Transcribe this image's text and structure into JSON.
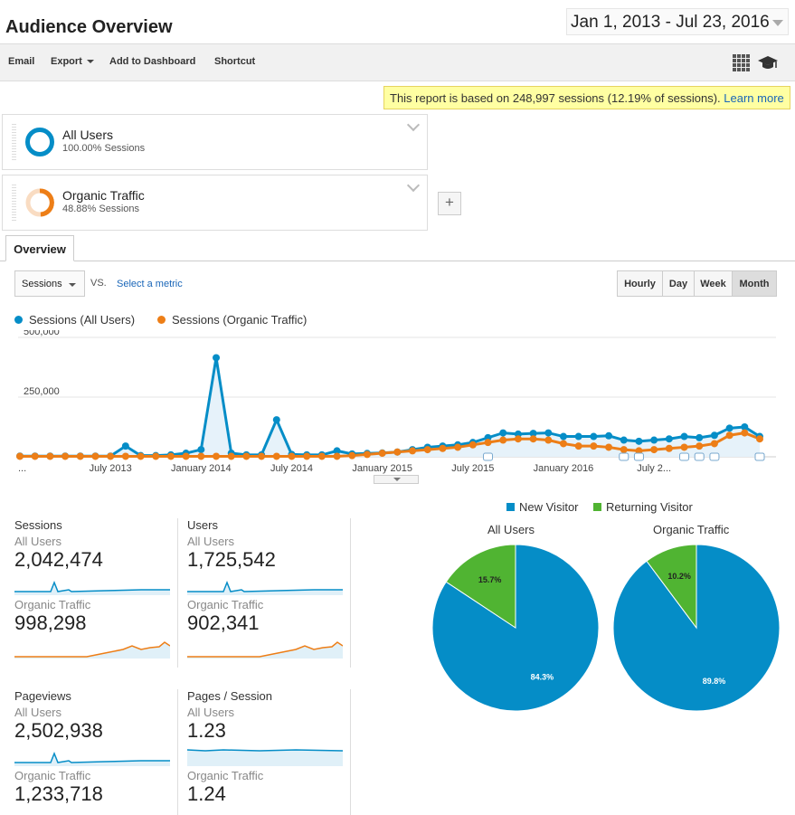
{
  "header": {
    "title": "Audience Overview",
    "date_range": "Jan 1, 2013 - Jul 23, 2016"
  },
  "toolbar": {
    "email": "Email",
    "export": "Export",
    "add_to_dashboard": "Add to Dashboard",
    "shortcut": "Shortcut",
    "icons": [
      "grid-icon",
      "graduation-cap-icon"
    ]
  },
  "notice": {
    "text": "This report is based on 248,997 sessions (12.19% of sessions).",
    "link": "Learn more"
  },
  "segments": [
    {
      "name": "All Users",
      "sub": "100.00% Sessions",
      "color": "#058dc7",
      "fraction": 1.0
    },
    {
      "name": "Organic Traffic",
      "sub": "48.88% Sessions",
      "color": "#ed7e17",
      "fraction": 0.4888
    }
  ],
  "add_segment": "+",
  "tabs": [
    {
      "label": "Overview"
    }
  ],
  "controls": {
    "metric": "Sessions",
    "vs": "VS.",
    "select_metric": "Select a metric",
    "periods": [
      "Hourly",
      "Day",
      "Week",
      "Month"
    ],
    "active_period": "Month"
  },
  "colors": {
    "all_users": "#058dc7",
    "organic": "#ed7e17",
    "new_visitor": "#058dc7",
    "returning_visitor": "#50b432"
  },
  "chart_data": [
    {
      "type": "line",
      "legend": [
        "Sessions (All Users)",
        "Sessions (Organic Traffic)"
      ],
      "y_ticks": [
        "500,000",
        "250,000"
      ],
      "ylim": [
        0,
        500000
      ],
      "x_tick_labels": [
        "...",
        "July 2013",
        "January 2014",
        "July 2014",
        "January 2015",
        "July 2015",
        "January 2016",
        "July 2..."
      ],
      "series": [
        {
          "name": "Sessions (All Users)",
          "values": [
            3000,
            3000,
            3000,
            3000,
            3000,
            3000,
            3000,
            45000,
            5000,
            5000,
            8000,
            15000,
            30000,
            415000,
            15000,
            8000,
            8000,
            155000,
            10000,
            8000,
            8000,
            25000,
            12000,
            14000,
            16000,
            20000,
            30000,
            40000,
            45000,
            50000,
            60000,
            80000,
            100000,
            95000,
            98000,
            100000,
            85000,
            85000,
            85000,
            88000,
            70000,
            65000,
            70000,
            75000,
            85000,
            80000,
            90000,
            120000,
            125000,
            85000
          ]
        },
        {
          "name": "Sessions (Organic Traffic)",
          "values": [
            2000,
            2000,
            2000,
            2000,
            2000,
            2000,
            2000,
            2000,
            2000,
            2000,
            2000,
            2000,
            2000,
            2000,
            2000,
            2000,
            2000,
            2000,
            2000,
            2000,
            2000,
            2000,
            5000,
            10000,
            15000,
            20000,
            25000,
            30000,
            35000,
            40000,
            50000,
            60000,
            70000,
            75000,
            75000,
            70000,
            55000,
            45000,
            45000,
            40000,
            30000,
            25000,
            30000,
            35000,
            40000,
            45000,
            55000,
            90000,
            100000,
            75000
          ]
        }
      ]
    },
    {
      "type": "pie",
      "title": "All Users",
      "categories": [
        "New Visitor",
        "Returning Visitor"
      ],
      "values": [
        84.3,
        15.7
      ],
      "labels": [
        "84.3%",
        "15.7%"
      ]
    },
    {
      "type": "pie",
      "title": "Organic Traffic",
      "categories": [
        "New Visitor",
        "Returning Visitor"
      ],
      "values": [
        89.8,
        10.2
      ],
      "labels": [
        "89.8%",
        "10.2%"
      ]
    }
  ],
  "pie_legend": [
    "New Visitor",
    "Returning Visitor"
  ],
  "metrics": [
    {
      "label": "Sessions",
      "all_users_label": "All Users",
      "all_users_value": "2,042,474",
      "organic_label": "Organic Traffic",
      "organic_value": "998,298"
    },
    {
      "label": "Users",
      "all_users_label": "All Users",
      "all_users_value": "1,725,542",
      "organic_label": "Organic Traffic",
      "organic_value": "902,341"
    },
    {
      "label": "Pageviews",
      "all_users_label": "All Users",
      "all_users_value": "2,502,938",
      "organic_label": "Organic Traffic",
      "organic_value": "1,233,718"
    },
    {
      "label": "Pages / Session",
      "all_users_label": "All Users",
      "all_users_value": "1.23",
      "organic_label": "Organic Traffic",
      "organic_value": "1.24"
    }
  ]
}
